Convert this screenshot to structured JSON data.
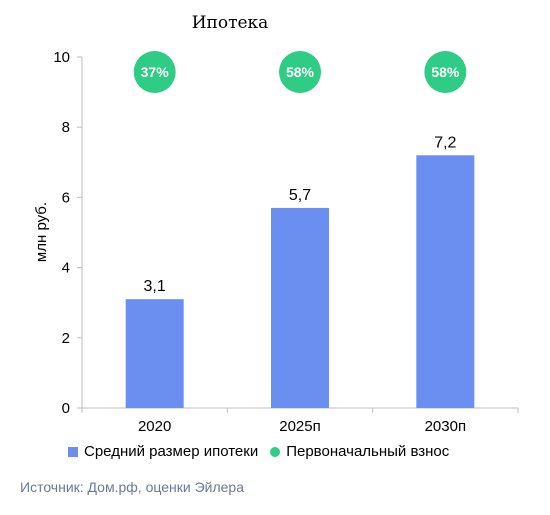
{
  "chart_data": {
    "type": "bar",
    "title": "Ипотека",
    "ylabel": "млн руб.",
    "ylim": [
      0,
      10
    ],
    "yticks": [
      "0",
      "2",
      "4",
      "6",
      "8",
      "10"
    ],
    "categories": [
      "2020",
      "2025п",
      "2030п"
    ],
    "series": [
      {
        "name": "Средний размер ипотеки",
        "values": [
          3.1,
          5.7,
          7.2
        ],
        "labels": [
          "3,1",
          "5,7",
          "7,2"
        ],
        "color": "#6a8ff0"
      },
      {
        "name": "Первоначальный взнос",
        "labels": [
          "37%",
          "58%",
          "58%"
        ],
        "color": "#2ecc85"
      }
    ],
    "grid": false,
    "legend": "bottom"
  },
  "source": "Источник: Дом.рф, оценки Эйлера"
}
